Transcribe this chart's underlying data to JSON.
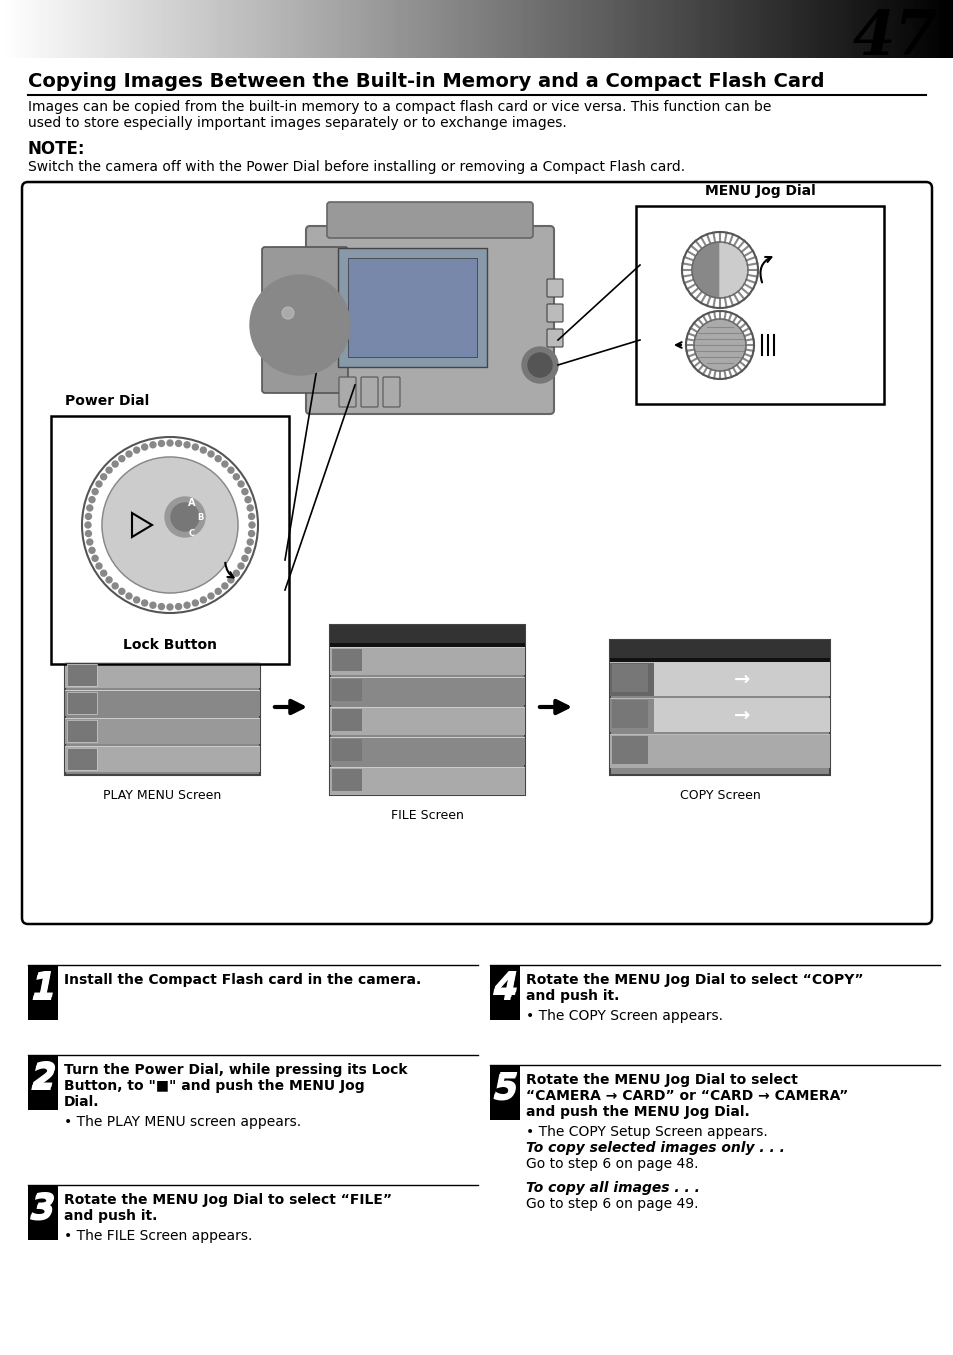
{
  "page_number": "47",
  "bg_color": "#ffffff",
  "title": "Copying Images Between the Built-in Memory and a Compact Flash Card",
  "intro_line1": "Images can be copied from the built-in memory to a compact flash card or vice versa. This function can be",
  "intro_line2": "used to store especially important images separately or to exchange images.",
  "note_label": "NOTE:",
  "note_text": "Switch the camera off with the Power Dial before installing or removing a Compact Flash card.",
  "power_dial_label": "Power Dial",
  "lock_button_label": "Lock Button",
  "menu_jog_dial_label": "MENU Jog Dial",
  "play_menu_label": "PLAY MENU Screen",
  "file_screen_label": "FILE Screen",
  "copy_screen_label": "COPY Screen",
  "step1_bold": "Install the Compact Flash card in the camera.",
  "step1_normal": "",
  "step2_bold1": "Turn the Power Dial, while pressing its Lock",
  "step2_bold2": "Button, to \"■\" and push the MENU Jog",
  "step2_bold3": "Dial.",
  "step2_normal": "• The PLAY MENU screen appears.",
  "step3_bold1": "Rotate the MENU Jog Dial to select “FILE”",
  "step3_bold2": "and push it.",
  "step3_normal": "• The FILE Screen appears.",
  "step4_bold1": "Rotate the MENU Jog Dial to select “COPY”",
  "step4_bold2": "and push it.",
  "step4_normal": "• The COPY Screen appears.",
  "step5_bold1": "Rotate the MENU Jog Dial to select",
  "step5_bold2": "“CAMERA → CARD” or “CARD → CAMERA”",
  "step5_bold3": "and push the MENU Jog Dial.",
  "step5_normal1": "• The COPY Setup Screen appears.",
  "step5_italic1": "To copy selected images only . . .",
  "step5_normal2": "Go to step 6 on page 48.",
  "step5_italic2": "To copy all images . . .",
  "step5_normal3": "Go to step 6 on page 49."
}
